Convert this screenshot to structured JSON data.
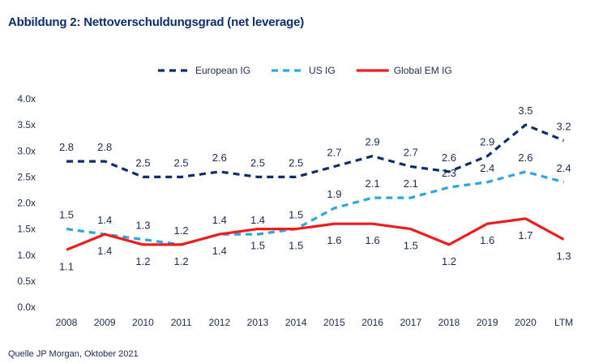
{
  "title": "Abbildung 2: Nettoverschuldungsgrad (net leverage)",
  "source": "Quelle  JP Morgan, Oktober 2021",
  "chart_data": {
    "type": "line",
    "categories": [
      "2008",
      "2009",
      "2010",
      "2011",
      "2012",
      "2013",
      "2014",
      "2015",
      "2016",
      "2017",
      "2018",
      "2019",
      "2020",
      "LTM"
    ],
    "ylim": [
      0,
      4
    ],
    "yticks": [
      "0.0x",
      "0.5x",
      "1.0x",
      "1.5x",
      "2.0x",
      "2.5x",
      "3.0x",
      "3.5x",
      "4.0x"
    ],
    "grid": false,
    "legend_position": "top-center",
    "series": [
      {
        "name": "European IG",
        "color": "#0d2d6c",
        "style": "dash",
        "label_position": "above",
        "values": [
          2.8,
          2.8,
          2.5,
          2.5,
          2.6,
          2.5,
          2.5,
          2.7,
          2.9,
          2.7,
          2.6,
          2.9,
          3.5,
          3.2
        ],
        "labels": [
          "2.8",
          "2.8",
          "2.5",
          "2.5",
          "2.6",
          "2.5",
          "2.5",
          "2.7",
          "2.9",
          "2.7",
          "2.6",
          "2.9",
          "3.5",
          "3.2"
        ]
      },
      {
        "name": "US IG",
        "color": "#29a8e0",
        "style": "dash",
        "label_position": "above",
        "values": [
          1.5,
          1.4,
          1.3,
          1.2,
          1.4,
          1.4,
          1.5,
          1.9,
          2.1,
          2.1,
          2.3,
          2.4,
          2.6,
          2.4
        ],
        "labels": [
          "1.5",
          "1.4",
          "1.3",
          "1.2",
          "1.4",
          "1.4",
          "1.5",
          "1.9",
          "2.1",
          "2.1",
          "2.3",
          "2.4",
          "2.6",
          "2.4"
        ]
      },
      {
        "name": "Global EM IG",
        "color": "#ee1c1c",
        "style": "solid",
        "label_position": "below",
        "values": [
          1.1,
          1.4,
          1.2,
          1.2,
          1.4,
          1.5,
          1.5,
          1.6,
          1.6,
          1.5,
          1.2,
          1.6,
          1.7,
          1.3
        ],
        "labels": [
          "1.1",
          "1.4",
          "1.2",
          "1.2",
          "1.4",
          "1.5",
          "1.5",
          "1.6",
          "1.6",
          "1.5",
          "1.2",
          "1.6",
          "1.7",
          "1.3"
        ]
      }
    ]
  }
}
